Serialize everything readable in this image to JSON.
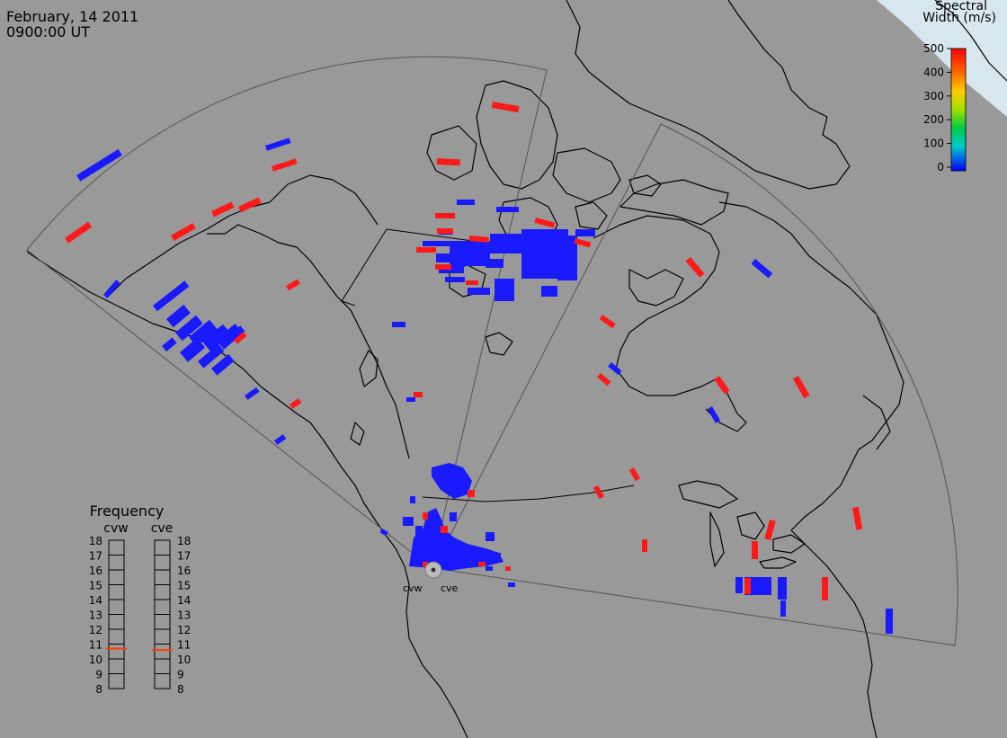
{
  "header": {
    "date": "February, 14 2011",
    "time": "0900:00 UT"
  },
  "colorbar": {
    "title_line1": "Spectral",
    "title_line2": "Width (m/s)",
    "ticks": [
      "500",
      "400",
      "300",
      "200",
      "100",
      "0"
    ],
    "min": 0,
    "max": 500
  },
  "radars": [
    {
      "code": "cvw"
    },
    {
      "code": "cve"
    }
  ],
  "frequency_panel": {
    "title": "Frequency",
    "radars": [
      "cvw",
      "cve"
    ],
    "ticks": [
      "18",
      "17",
      "16",
      "15",
      "14",
      "13",
      "12",
      "11",
      "10",
      "9",
      "8"
    ],
    "min_mhz": 8,
    "max_mhz": 18,
    "current_mhz": [
      10.7,
      10.6
    ]
  },
  "colors": {
    "background": "#999999",
    "land_outline": "#000000",
    "fov_outline": "#555555",
    "low_width": "#1a1aff",
    "high_width": "#ff1a1a",
    "frequency_marker": "#ff4000"
  }
}
